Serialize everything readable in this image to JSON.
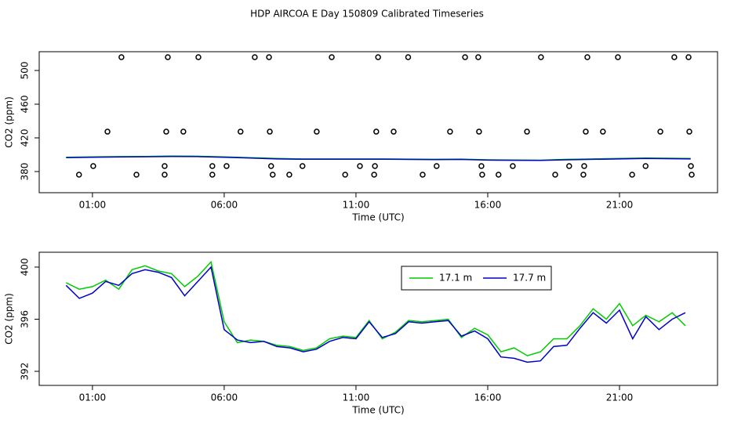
{
  "chart_data": [
    {
      "type": "line",
      "title": "HDP AIRCOA E  Day 150809  Calibrated Timeseries",
      "x_label": "Time (UTC)",
      "y_label": "CO2 (ppm)",
      "xlim": [
        -1.02,
        24.72
      ],
      "xticks": [
        {
          "value": 1,
          "label": "01:00"
        },
        {
          "value": 6,
          "label": "06:00"
        },
        {
          "value": 11,
          "label": "11:00"
        },
        {
          "value": 16,
          "label": "16:00"
        },
        {
          "value": 21,
          "label": "21:00"
        }
      ],
      "ylim": [
        354.9,
        522.3
      ],
      "yticks": [
        380,
        420,
        460,
        500
      ],
      "x": [
        0,
        1,
        2,
        3,
        4,
        5,
        6,
        7,
        8,
        9,
        10,
        11,
        12,
        13,
        14,
        15,
        16,
        17,
        18,
        19,
        20,
        21,
        22,
        23.7
      ],
      "series": [
        {
          "color": "#00cc00",
          "values": [
            397,
            397.5,
            397.8,
            398,
            398.5,
            398.2,
            397.5,
            396.5,
            395.5,
            395,
            395,
            395,
            395,
            394.8,
            394.6,
            394.8,
            394,
            393.8,
            393.5,
            394.5,
            395,
            395.5,
            396,
            395.5
          ]
        },
        {
          "color": "#0000cc",
          "values": [
            396.6,
            397,
            397.3,
            397.6,
            398,
            397.8,
            397,
            396,
            395,
            394.6,
            394.6,
            394.6,
            394.6,
            394.4,
            394.2,
            394.4,
            393.6,
            393.4,
            393.2,
            394,
            394.5,
            395,
            395.5,
            395
          ]
        }
      ],
      "points": {
        "color": "#000000",
        "x": [
          2.1,
          3.86,
          5.02,
          7.16,
          7.7,
          10.08,
          11.84,
          12.98,
          15.14,
          15.64,
          18.02,
          19.78,
          20.94,
          23.08,
          23.62,
          1.57,
          3.8,
          4.45,
          6.62,
          7.73,
          9.51,
          11.77,
          12.43,
          14.57,
          15.67,
          17.49,
          19.72,
          20.37,
          22.55,
          23.65,
          1.03,
          3.74,
          5.55,
          6.09,
          7.78,
          8.97,
          11.15,
          11.72,
          14.06,
          15.76,
          16.95,
          19.09,
          19.66,
          21.99,
          23.71,
          0.49,
          2.67,
          3.74,
          5.55,
          7.84,
          8.47,
          10.59,
          11.69,
          13.53,
          15.79,
          16.41,
          18.56,
          19.63,
          21.48,
          23.74
        ],
        "values": [
          515.8,
          515.8,
          515.8,
          515.8,
          515.8,
          515.8,
          515.8,
          515.8,
          515.8,
          515.8,
          515.8,
          515.8,
          515.8,
          515.8,
          515.8,
          427.4,
          427.4,
          427.4,
          427.4,
          427.4,
          427.4,
          427.4,
          427.4,
          427.4,
          427.4,
          427.4,
          427.4,
          427.4,
          427.4,
          427.4,
          386.5,
          386.5,
          386.5,
          386.5,
          386.5,
          386.5,
          386.5,
          386.5,
          386.5,
          386.5,
          386.5,
          386.5,
          386.5,
          386.5,
          386.5,
          376.3,
          376.3,
          376.3,
          376.3,
          376.3,
          376.3,
          376.3,
          376.3,
          376.3,
          376.3,
          376.3,
          376.3,
          376.3,
          376.3,
          376.3
        ]
      }
    },
    {
      "type": "line",
      "x_label": "Time (UTC)",
      "y_label": "CO2 (ppm)",
      "xlim": [
        -1.02,
        24.72
      ],
      "xticks": [
        {
          "value": 1,
          "label": "01:00"
        },
        {
          "value": 6,
          "label": "06:00"
        },
        {
          "value": 11,
          "label": "11:00"
        },
        {
          "value": 16,
          "label": "16:00"
        },
        {
          "value": 21,
          "label": "21:00"
        }
      ],
      "ylim": [
        390.92,
        401.14
      ],
      "yticks": [
        392,
        396,
        400
      ],
      "legend": "top",
      "x": [
        0,
        0.5,
        1,
        1.5,
        2,
        2.5,
        3,
        3.5,
        4,
        4.5,
        5,
        5.5,
        6,
        6.5,
        7,
        7.5,
        8,
        8.5,
        9,
        9.5,
        10,
        10.5,
        11,
        11.5,
        12,
        12.5,
        13,
        13.5,
        14,
        14.5,
        15,
        15.5,
        16,
        16.5,
        17,
        17.5,
        18,
        18.5,
        19,
        19.5,
        20,
        20.5,
        21,
        21.5,
        22,
        22.5,
        23,
        23.5
      ],
      "series": [
        {
          "name": "17.1 m",
          "color": "#00cc00",
          "values": [
            398.8,
            398.3,
            398.5,
            399,
            398.3,
            399.8,
            400.1,
            399.7,
            399.5,
            398.5,
            399.3,
            400.4,
            395.8,
            394.2,
            394.4,
            394.3,
            394.0,
            393.9,
            393.6,
            393.8,
            394.5,
            394.7,
            394.6,
            395.9,
            394.5,
            395.0,
            395.9,
            395.8,
            395.9,
            396.0,
            394.6,
            395.3,
            394.8,
            393.5,
            393.8,
            393.2,
            393.5,
            394.5,
            394.5,
            395.5,
            396.8,
            396.0,
            397.2,
            395.5,
            396.3,
            395.8,
            396.5,
            395.5
          ]
        },
        {
          "name": "17.7 m",
          "color": "#0000cc",
          "values": [
            398.6,
            397.6,
            398.0,
            398.9,
            398.6,
            399.5,
            399.8,
            399.6,
            399.2,
            397.8,
            398.9,
            400.0,
            395.2,
            394.4,
            394.2,
            394.3,
            393.9,
            393.8,
            393.5,
            393.7,
            394.3,
            394.6,
            394.5,
            395.8,
            394.6,
            394.9,
            395.8,
            395.7,
            395.8,
            395.9,
            394.7,
            395.1,
            394.5,
            393.1,
            393.0,
            392.7,
            392.8,
            393.9,
            394.0,
            395.3,
            396.5,
            395.7,
            396.7,
            394.5,
            396.2,
            395.2,
            396.0,
            396.5
          ]
        }
      ]
    }
  ]
}
